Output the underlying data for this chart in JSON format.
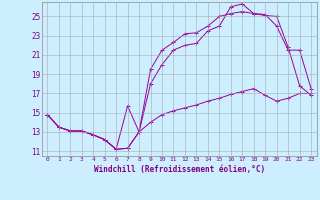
{
  "xlabel": "Windchill (Refroidissement éolien,°C)",
  "bg_color": "#cceeff",
  "grid_color": "#aaaaaa",
  "line_color": "#990099",
  "xlim": [
    -0.5,
    23.5
  ],
  "ylim": [
    10.5,
    26.5
  ],
  "xticks": [
    0,
    1,
    2,
    3,
    4,
    5,
    6,
    7,
    8,
    9,
    10,
    11,
    12,
    13,
    14,
    15,
    16,
    17,
    18,
    19,
    20,
    21,
    22,
    23
  ],
  "yticks": [
    11,
    13,
    15,
    17,
    19,
    21,
    23,
    25
  ],
  "line1_x": [
    0,
    1,
    2,
    3,
    4,
    5,
    6,
    7,
    8,
    9,
    10,
    11,
    12,
    13,
    14,
    15,
    16,
    17,
    18,
    19,
    20,
    21,
    22,
    23
  ],
  "line1_y": [
    14.8,
    13.5,
    13.1,
    13.1,
    12.7,
    12.2,
    11.2,
    11.3,
    13.0,
    14.0,
    14.8,
    15.2,
    15.5,
    15.8,
    16.2,
    16.5,
    16.9,
    17.2,
    17.5,
    16.8,
    16.2,
    16.5,
    17.0,
    17.0
  ],
  "line2_x": [
    0,
    1,
    2,
    3,
    4,
    5,
    6,
    7,
    8,
    9,
    10,
    11,
    12,
    13,
    14,
    15,
    16,
    17,
    18,
    19,
    20,
    21,
    22,
    23
  ],
  "line2_y": [
    14.8,
    13.5,
    13.1,
    13.1,
    12.7,
    12.2,
    11.2,
    15.7,
    13.0,
    19.5,
    21.5,
    22.3,
    23.2,
    23.3,
    24.0,
    25.0,
    25.3,
    25.5,
    25.3,
    25.1,
    25.0,
    21.8,
    17.8,
    16.8
  ],
  "line3_x": [
    0,
    1,
    2,
    3,
    4,
    5,
    6,
    7,
    8,
    9,
    10,
    11,
    12,
    13,
    14,
    15,
    16,
    17,
    18,
    19,
    20,
    21,
    22,
    23
  ],
  "line3_y": [
    14.8,
    13.5,
    13.1,
    13.1,
    12.7,
    12.2,
    11.2,
    11.3,
    13.0,
    18.0,
    20.0,
    21.5,
    22.0,
    22.2,
    23.5,
    24.0,
    26.0,
    26.3,
    25.3,
    25.2,
    24.0,
    21.5,
    21.5,
    17.5
  ]
}
